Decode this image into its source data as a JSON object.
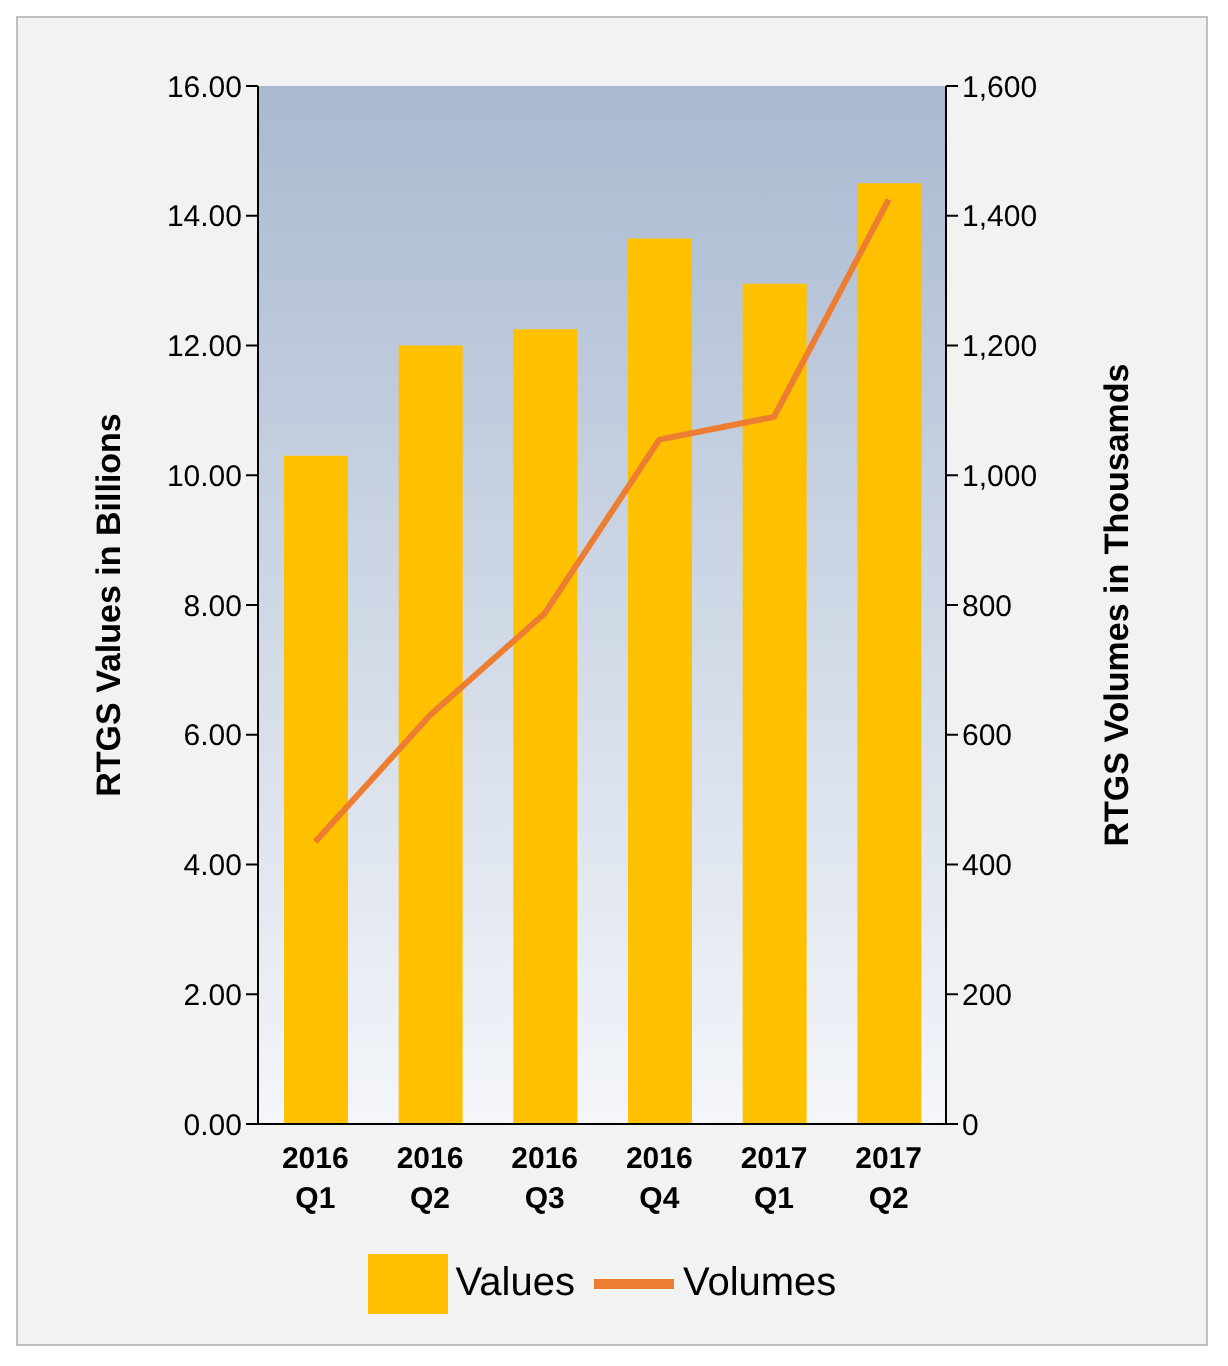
{
  "chart_data": {
    "type": "bar",
    "categories": [
      "2016 Q1",
      "2016 Q2",
      "2016 Q3",
      "2016 Q4",
      "2017 Q1",
      "2017 Q2"
    ],
    "ylabel": "RTGS Values in Billions",
    "y2label": "RTGS Volumes in Thousamds",
    "series": [
      {
        "name": "Values",
        "color": "#ffc000",
        "values": [
          10.3,
          12.0,
          12.25,
          13.65,
          12.95,
          14.5
        ]
      },
      {
        "name": "Volumes",
        "type": "line",
        "axis": "y2",
        "color": "#ed7d31",
        "values": [
          435,
          630,
          787,
          1055,
          1090,
          1425
        ]
      }
    ],
    "ylim": [
      0,
      16
    ],
    "yticks": [
      {
        "value": 0,
        "label": "0.00"
      },
      {
        "value": 2,
        "label": "2.00"
      },
      {
        "value": 4,
        "label": "4.00"
      },
      {
        "value": 6,
        "label": "6.00"
      },
      {
        "value": 8,
        "label": "8.00"
      },
      {
        "value": 10,
        "label": "10.00"
      },
      {
        "value": 12,
        "label": "12.00"
      },
      {
        "value": 14,
        "label": "14.00"
      },
      {
        "value": 16,
        "label": "16.00"
      }
    ],
    "y2lim": [
      0,
      1600
    ],
    "y2ticks": [
      0,
      200,
      400,
      600,
      800,
      {
        "value": 1000,
        "label": "1,000"
      },
      {
        "value": 1200,
        "label": "1,200"
      },
      {
        "value": 1400,
        "label": "1,400"
      },
      {
        "value": 1600,
        "label": "1,600"
      }
    ],
    "legend": "bottom",
    "marker": "none"
  }
}
